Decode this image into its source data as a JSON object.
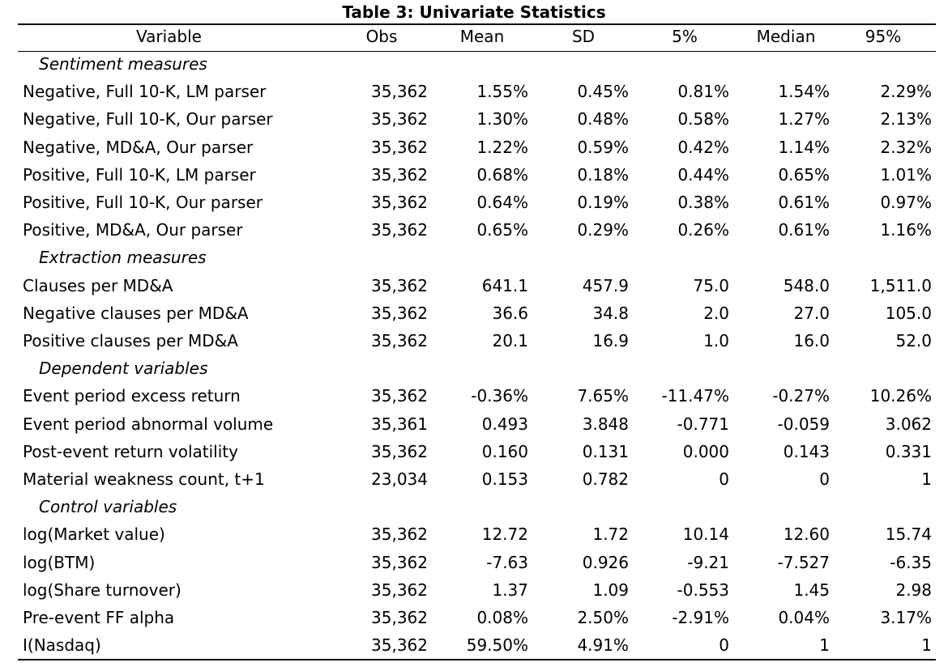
{
  "title": "Table 3: Univariate Statistics",
  "headers": [
    "Variable",
    "Obs",
    "Mean",
    "SD",
    "5%",
    "Median",
    "95%"
  ],
  "rows": [
    {
      "type": "section",
      "label": "Sentiment measures"
    },
    {
      "type": "data",
      "label": "Negative, Full 10-K, LM parser",
      "values": [
        "35,362",
        "1.55%",
        "0.45%",
        "0.81%",
        "1.54%",
        "2.29%"
      ]
    },
    {
      "type": "data",
      "label": "Negative, Full 10-K, Our parser",
      "values": [
        "35,362",
        "1.30%",
        "0.48%",
        "0.58%",
        "1.27%",
        "2.13%"
      ]
    },
    {
      "type": "data",
      "label": "Negative, MD&A, Our parser",
      "values": [
        "35,362",
        "1.22%",
        "0.59%",
        "0.42%",
        "1.14%",
        "2.32%"
      ]
    },
    {
      "type": "data",
      "label": "Positive, Full 10-K, LM parser",
      "values": [
        "35,362",
        "0.68%",
        "0.18%",
        "0.44%",
        "0.65%",
        "1.01%"
      ]
    },
    {
      "type": "data",
      "label": "Positive, Full 10-K, Our parser",
      "values": [
        "35,362",
        "0.64%",
        "0.19%",
        "0.38%",
        "0.61%",
        "0.97%"
      ]
    },
    {
      "type": "data",
      "label": "Positive, MD&A, Our parser",
      "values": [
        "35,362",
        "0.65%",
        "0.29%",
        "0.26%",
        "0.61%",
        "1.16%"
      ]
    },
    {
      "type": "section",
      "label": "Extraction measures"
    },
    {
      "type": "data",
      "label": "Clauses per MD&A",
      "values": [
        "35,362",
        "641.1",
        "457.9",
        "75.0",
        "548.0",
        "1,511.0"
      ]
    },
    {
      "type": "data",
      "label": "Negative clauses per MD&A",
      "values": [
        "35,362",
        "36.6",
        "34.8",
        "2.0",
        "27.0",
        "105.0"
      ]
    },
    {
      "type": "data",
      "label": "Positive clauses per MD&A",
      "values": [
        "35,362",
        "20.1",
        "16.9",
        "1.0",
        "16.0",
        "52.0"
      ]
    },
    {
      "type": "section",
      "label": "Dependent variables"
    },
    {
      "type": "data",
      "label": "Event period excess return",
      "values": [
        "35,362",
        "-0.36%",
        "7.65%",
        "-11.47%",
        "-0.27%",
        "10.26%"
      ]
    },
    {
      "type": "data",
      "label": "Event period abnormal volume",
      "values": [
        "35,361",
        "0.493",
        "3.848",
        "-0.771",
        "-0.059",
        "3.062"
      ]
    },
    {
      "type": "data",
      "label": "Post-event return volatility",
      "values": [
        "35,362",
        "0.160",
        "0.131",
        "0.000",
        "0.143",
        "0.331"
      ]
    },
    {
      "type": "data",
      "label": "Material weakness count, t+1",
      "values": [
        "23,034",
        "0.153",
        "0.782",
        "0",
        "0",
        "1"
      ]
    },
    {
      "type": "section",
      "label": "Control variables"
    },
    {
      "type": "data",
      "label": "log(Market value)",
      "values": [
        "35,362",
        "12.72",
        "1.72",
        "10.14",
        "12.60",
        "15.74"
      ]
    },
    {
      "type": "data",
      "label": "log(BTM)",
      "values": [
        "35,362",
        "-7.63",
        "0.926",
        "-9.21",
        "-7.527",
        "-6.35"
      ]
    },
    {
      "type": "data",
      "label": "log(Share turnover)",
      "values": [
        "35,362",
        "1.37",
        "1.09",
        "-0.553",
        "1.45",
        "2.98"
      ]
    },
    {
      "type": "data",
      "label": "Pre-event FF alpha",
      "values": [
        "35,362",
        "0.08%",
        "2.50%",
        "-2.91%",
        "0.04%",
        "3.17%"
      ]
    },
    {
      "type": "data",
      "label": "I(Nasdaq)",
      "values": [
        "35,362",
        "59.50%",
        "4.91%",
        "0",
        "1",
        "1"
      ]
    }
  ]
}
